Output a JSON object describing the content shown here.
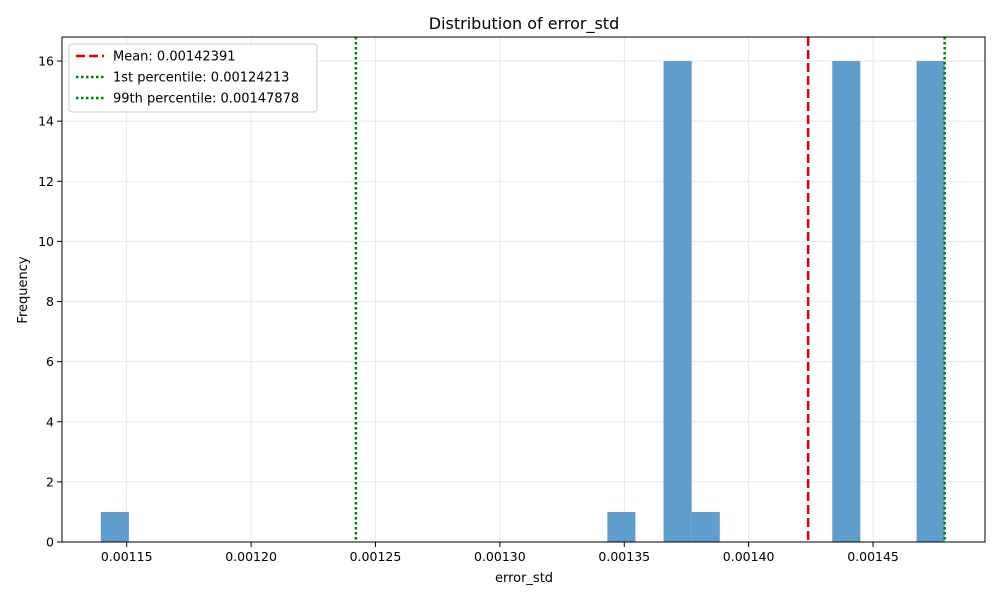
{
  "chart_data": {
    "type": "bar",
    "title": "Distribution of error_std",
    "xlabel": "error_std",
    "ylabel": "Frequency",
    "xlim": [
      0.001124,
      0.001495
    ],
    "ylim": [
      0,
      16.8
    ],
    "x_ticks": [
      0.00115,
      0.0012,
      0.00125,
      0.0013,
      0.00135,
      0.0014,
      0.00145
    ],
    "x_tick_labels": [
      "0.00115",
      "0.00120",
      "0.00125",
      "0.00130",
      "0.00135",
      "0.00140",
      "0.00145"
    ],
    "y_ticks": [
      0,
      2,
      4,
      6,
      8,
      10,
      12,
      14,
      16
    ],
    "y_tick_labels": [
      "0",
      "2",
      "4",
      "6",
      "8",
      "10",
      "12",
      "14",
      "16"
    ],
    "grid": true,
    "legend_position": "top-left",
    "bar_color": "#5f9ecc",
    "bins": [
      {
        "start": 0.0011396,
        "end": 0.0011509,
        "count": 1
      },
      {
        "start": 0.0013432,
        "end": 0.0013545,
        "count": 1
      },
      {
        "start": 0.0013658,
        "end": 0.0013771,
        "count": 16
      },
      {
        "start": 0.0013771,
        "end": 0.0013884,
        "count": 1
      },
      {
        "start": 0.0014336,
        "end": 0.0014449,
        "count": 16
      },
      {
        "start": 0.0014675,
        "end": 0.0014788,
        "count": 16
      }
    ],
    "reference_lines": [
      {
        "label": "Mean: 0.00142391",
        "value": 0.00142391,
        "color": "#e00000",
        "style": "dashed"
      },
      {
        "label": "1st percentile: 0.00124213",
        "value": 0.00124213,
        "color": "#008000",
        "style": "dotted"
      },
      {
        "label": "99th percentile: 0.00147878",
        "value": 0.00147878,
        "color": "#008000",
        "style": "dotted"
      }
    ]
  }
}
